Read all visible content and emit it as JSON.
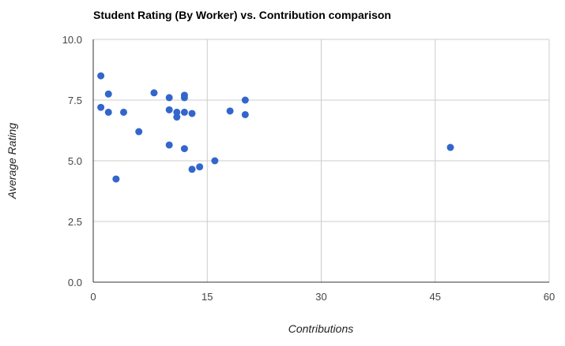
{
  "chart_data": {
    "type": "scatter",
    "title": "Student Rating (By Worker) vs. Contribution comparison",
    "xlabel": "Contributions",
    "ylabel": "Average Rating",
    "xlim": [
      0,
      60
    ],
    "ylim": [
      0,
      10
    ],
    "xticks": [
      0,
      15,
      30,
      45,
      60
    ],
    "yticks": [
      0,
      2.5,
      5,
      7.5,
      10
    ],
    "xtick_labels": [
      "0",
      "15",
      "30",
      "45",
      "60"
    ],
    "ytick_labels": [
      "0.0",
      "2.5",
      "5.0",
      "7.5",
      "10.0"
    ],
    "grid": true,
    "legend": "none",
    "colors": {
      "point": "#3366cc",
      "grid": "#cccccc",
      "axis": "#333333"
    },
    "series": [
      {
        "points": [
          {
            "x": 1,
            "y": 8.5
          },
          {
            "x": 1,
            "y": 7.2
          },
          {
            "x": 2,
            "y": 7.75
          },
          {
            "x": 2,
            "y": 7.0
          },
          {
            "x": 3,
            "y": 4.25
          },
          {
            "x": 4,
            "y": 7.0
          },
          {
            "x": 6,
            "y": 6.2
          },
          {
            "x": 8,
            "y": 7.8
          },
          {
            "x": 10,
            "y": 7.6
          },
          {
            "x": 10,
            "y": 7.1
          },
          {
            "x": 10,
            "y": 5.65
          },
          {
            "x": 11,
            "y": 7.0
          },
          {
            "x": 11,
            "y": 6.8
          },
          {
            "x": 12,
            "y": 7.7
          },
          {
            "x": 12,
            "y": 7.6
          },
          {
            "x": 12,
            "y": 7.0
          },
          {
            "x": 12,
            "y": 5.5
          },
          {
            "x": 13,
            "y": 6.95
          },
          {
            "x": 13,
            "y": 4.65
          },
          {
            "x": 14,
            "y": 4.75
          },
          {
            "x": 16,
            "y": 5.0
          },
          {
            "x": 18,
            "y": 7.05
          },
          {
            "x": 20,
            "y": 7.5
          },
          {
            "x": 20,
            "y": 6.9
          },
          {
            "x": 47,
            "y": 5.55
          }
        ]
      }
    ]
  }
}
